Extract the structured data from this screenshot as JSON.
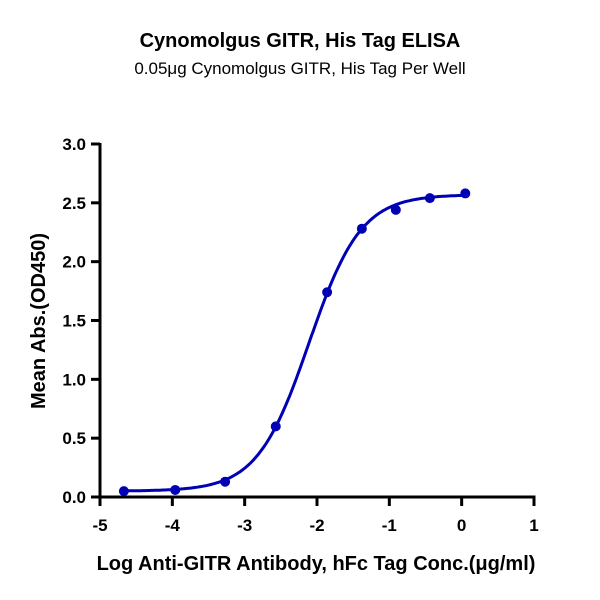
{
  "chart_data": {
    "type": "scatter",
    "title": "Cynomolgus GITR, His Tag ELISA",
    "subtitle": "0.05μg Cynomolgus GITR, His Tag Per Well",
    "xlabel": "Log Anti-GITR Antibody, hFc Tag Conc.(μg/ml)",
    "ylabel": "Mean Abs.(OD450)",
    "xlim": [
      -5,
      1
    ],
    "ylim": [
      0,
      3.0
    ],
    "xticks": [
      "-5",
      "-4",
      "-3",
      "-2",
      "-1",
      "0",
      "1"
    ],
    "yticks": [
      "0.0",
      "0.5",
      "1.0",
      "1.5",
      "2.0",
      "2.5",
      "3.0"
    ],
    "grid": false,
    "fit_curve": "sigmoidal",
    "series": [
      {
        "color": "#0000b4",
        "x": [
          -4.67,
          -3.96,
          -3.27,
          -2.57,
          -1.86,
          -1.38,
          -0.91,
          -0.44,
          0.05
        ],
        "y": [
          0.05,
          0.06,
          0.13,
          0.6,
          1.74,
          2.28,
          2.44,
          2.54,
          2.58
        ]
      }
    ]
  }
}
